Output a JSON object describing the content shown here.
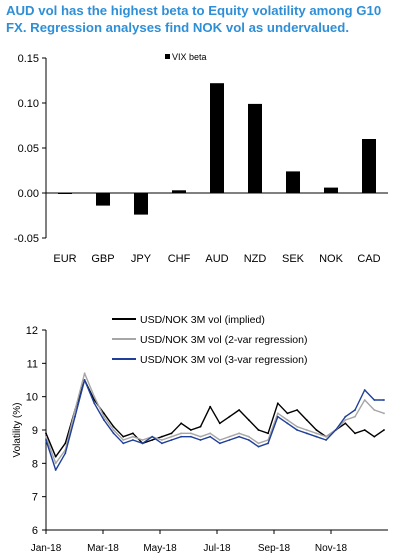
{
  "headline": "AUD vol has the highest beta to Equity volatility among G10 FX. Regression analyses find NOK vol as undervalued.",
  "chart_data": [
    {
      "type": "bar",
      "categories": [
        "EUR",
        "GBP",
        "JPY",
        "CHF",
        "AUD",
        "NZD",
        "SEK",
        "NOK",
        "CAD"
      ],
      "series": [
        {
          "name": "VIX beta",
          "values": [
            -0.001,
            -0.014,
            -0.024,
            0.003,
            0.122,
            0.099,
            0.024,
            0.006,
            0.06
          ],
          "color": "#000000"
        }
      ],
      "ylim": [
        -0.05,
        0.15
      ],
      "yticks": [
        "-0.05",
        "0.00",
        "0.05",
        "0.10",
        "0.15"
      ],
      "legend_position": "top-center",
      "grid": false
    },
    {
      "type": "line",
      "ylabel": "Volatility (%)",
      "ylim": [
        6,
        12
      ],
      "yticks": [
        "6",
        "7",
        "8",
        "9",
        "10",
        "11",
        "12"
      ],
      "xticks": [
        "Jan-18",
        "Mar-18",
        "May-18",
        "Jul-18",
        "Sep-18",
        "Nov-18"
      ],
      "x": [
        "Jan-18",
        "Jan-18",
        "Jan-18",
        "Feb-18",
        "Feb-18",
        "Feb-18",
        "Mar-18",
        "Mar-18",
        "Mar-18",
        "Apr-18",
        "Apr-18",
        "Apr-18",
        "May-18",
        "May-18",
        "May-18",
        "Jun-18",
        "Jun-18",
        "Jun-18",
        "Jul-18",
        "Jul-18",
        "Jul-18",
        "Aug-18",
        "Aug-18",
        "Aug-18",
        "Sep-18",
        "Sep-18",
        "Sep-18",
        "Oct-18",
        "Oct-18",
        "Oct-18",
        "Nov-18",
        "Nov-18",
        "Nov-18",
        "Dec-18",
        "Dec-18",
        "Dec-18"
      ],
      "series": [
        {
          "name": "USD/NOK 3M vol (implied)",
          "color": "#000000",
          "values": [
            8.9,
            8.2,
            8.6,
            9.6,
            10.5,
            9.9,
            9.5,
            9.1,
            8.8,
            8.9,
            8.6,
            8.7,
            8.8,
            8.9,
            9.2,
            9.0,
            9.1,
            9.7,
            9.2,
            9.4,
            9.6,
            9.3,
            9.0,
            8.9,
            9.8,
            9.5,
            9.6,
            9.3,
            9.0,
            8.8,
            9.0,
            9.2,
            8.9,
            9.0,
            8.8,
            9.0
          ]
        },
        {
          "name": "USD/NOK 3M vol (2-var regression)",
          "color": "#a6a6a6",
          "values": [
            8.8,
            8.0,
            8.4,
            9.6,
            10.7,
            10.0,
            9.4,
            9.0,
            8.7,
            8.8,
            8.7,
            8.8,
            8.7,
            8.8,
            8.9,
            8.9,
            8.8,
            8.9,
            8.7,
            8.8,
            8.9,
            8.8,
            8.6,
            8.7,
            9.5,
            9.3,
            9.1,
            9.0,
            8.9,
            8.8,
            9.0,
            9.3,
            9.4,
            9.9,
            9.6,
            9.5
          ]
        },
        {
          "name": "USD/NOK 3M vol (3-var regression)",
          "color": "#1f3f99",
          "values": [
            8.7,
            7.8,
            8.3,
            9.4,
            10.5,
            9.8,
            9.3,
            8.9,
            8.6,
            8.7,
            8.6,
            8.8,
            8.6,
            8.7,
            8.8,
            8.8,
            8.7,
            8.8,
            8.6,
            8.7,
            8.8,
            8.7,
            8.5,
            8.6,
            9.4,
            9.2,
            9.0,
            8.9,
            8.8,
            8.7,
            9.0,
            9.4,
            9.6,
            10.2,
            9.9,
            9.9
          ]
        }
      ],
      "legend_position": "top-center",
      "grid": false
    }
  ]
}
